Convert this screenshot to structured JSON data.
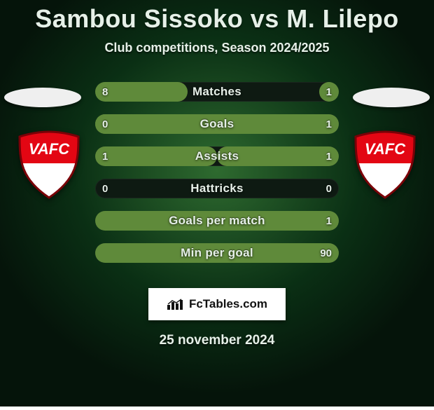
{
  "background": {
    "base": "#0a2f14",
    "vignette_outer": "#05140a",
    "spot_inner": "#2e6a2f"
  },
  "text_color": "#e6f0e8",
  "title": "Sambou Sissoko vs M. Lilepo",
  "subtitle": "Club competitions, Season 2024/2025",
  "date": "25 november 2024",
  "branding_text": "FcTables.com",
  "track_color": "#0e1a12",
  "fill_color": "#5f8a3a",
  "club_badge": {
    "top": "#e30613",
    "bottom": "#ffffff",
    "outline": "#7a0007",
    "text": "VAFC",
    "text_color": "#ffffff"
  },
  "stats": [
    {
      "label": "Matches",
      "left_val": "8",
      "right_val": "1",
      "left_pct": 38,
      "right_pct": 8
    },
    {
      "label": "Goals",
      "left_val": "0",
      "right_val": "1",
      "left_pct": 18,
      "right_pct": 100
    },
    {
      "label": "Assists",
      "left_val": "1",
      "right_val": "1",
      "left_pct": 50,
      "right_pct": 50
    },
    {
      "label": "Hattricks",
      "left_val": "0",
      "right_val": "0",
      "left_pct": 0,
      "right_pct": 0
    },
    {
      "label": "Goals per match",
      "left_val": "",
      "right_val": "1",
      "left_pct": 0,
      "right_pct": 100
    },
    {
      "label": "Min per goal",
      "left_val": "",
      "right_val": "90",
      "left_pct": 0,
      "right_pct": 100
    }
  ]
}
